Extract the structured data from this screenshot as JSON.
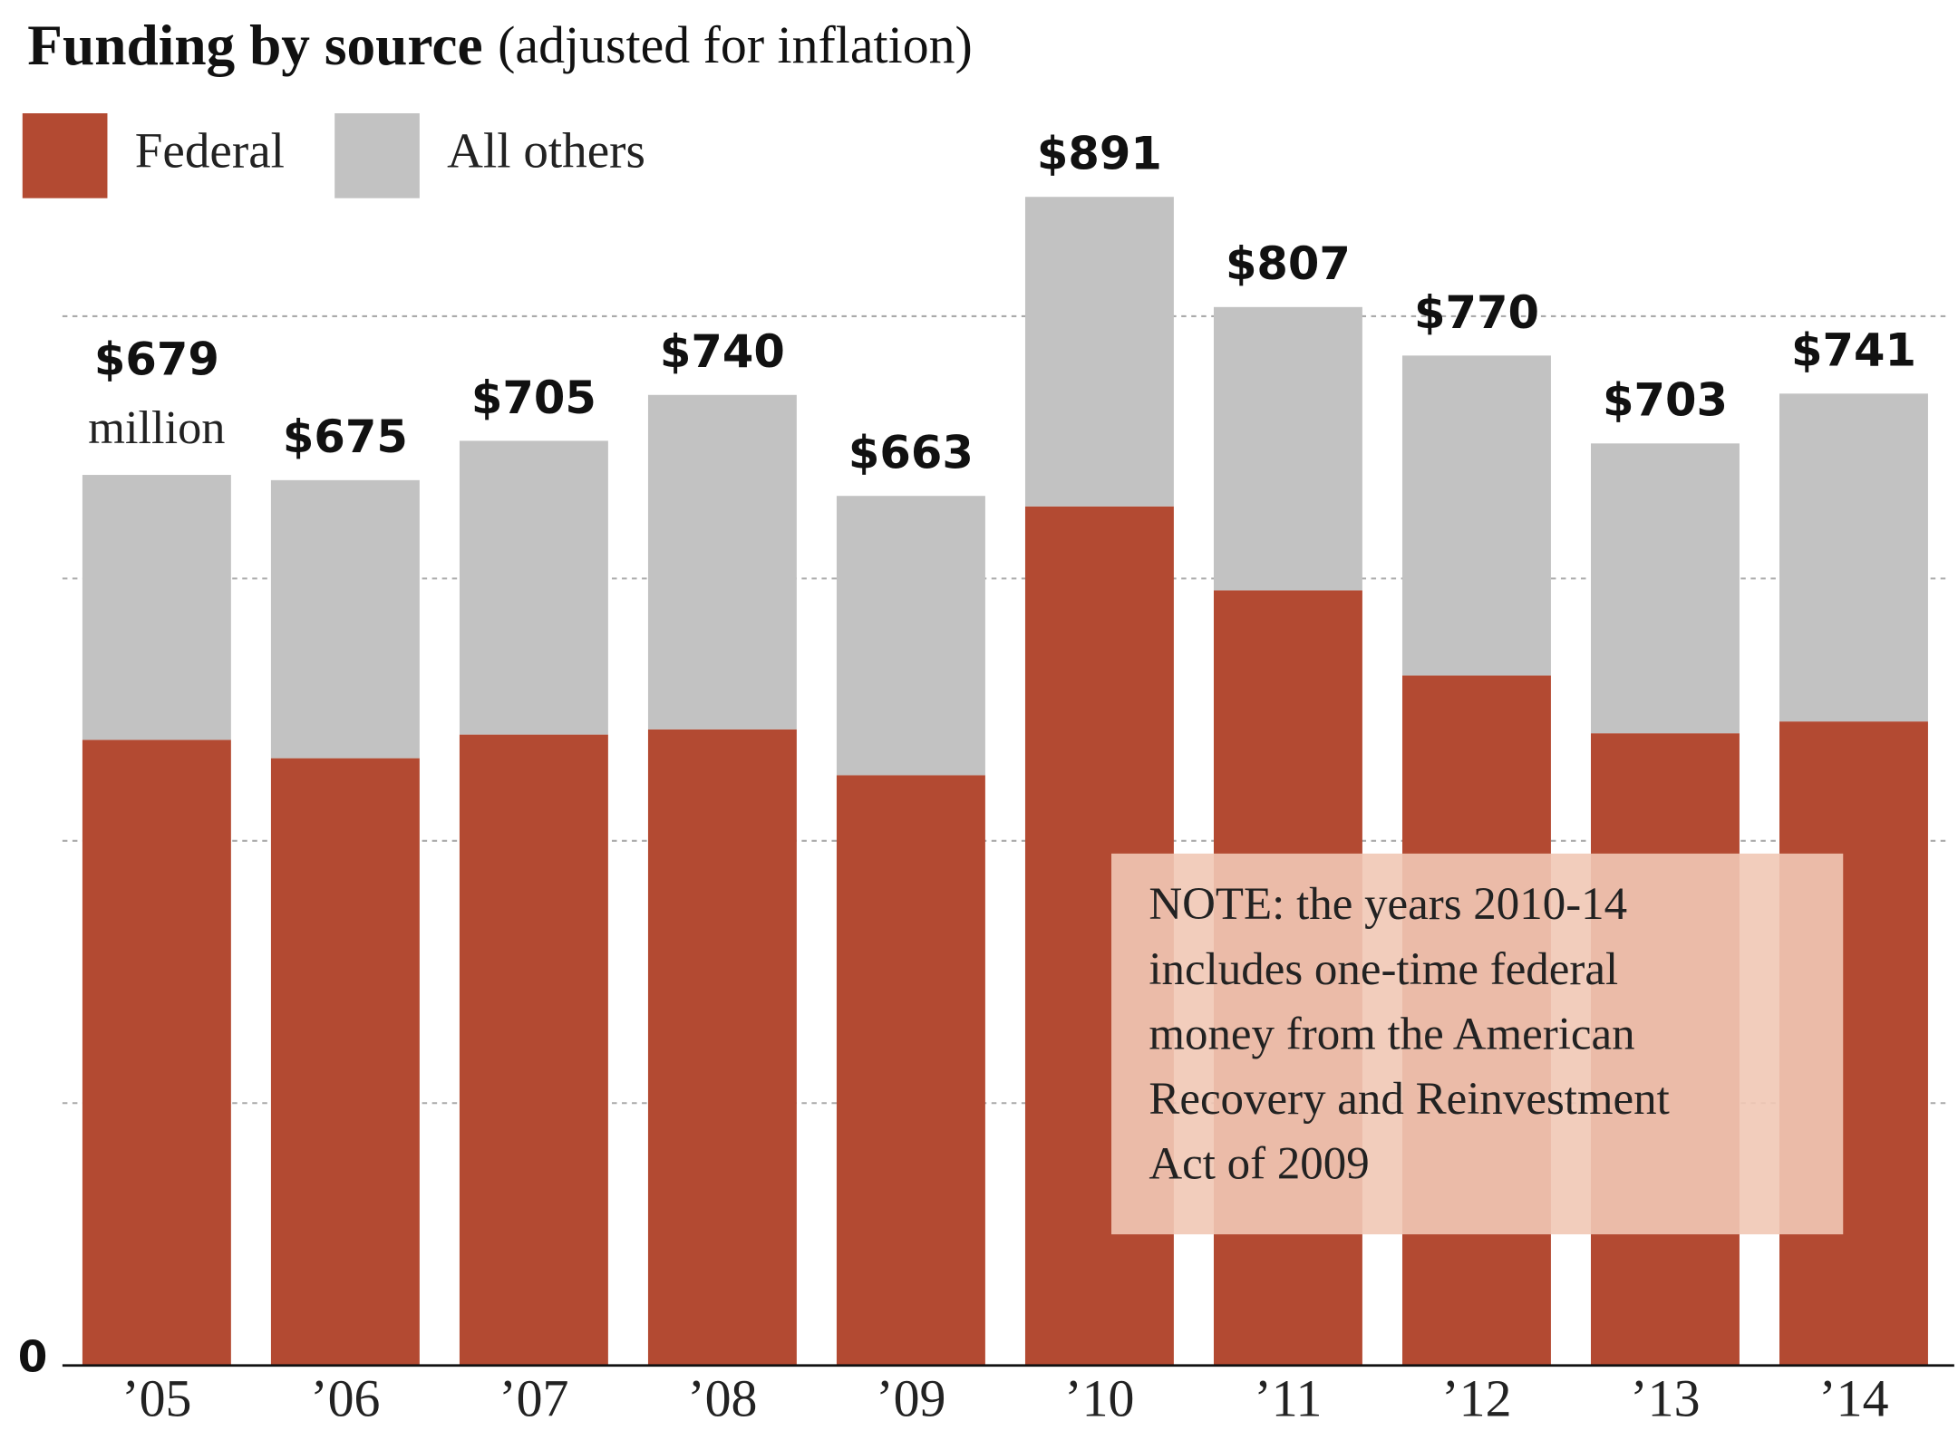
{
  "chart_data": {
    "type": "stacked-bar",
    "title": "Funding by source",
    "subtitle": "(adjusted for inflation)",
    "categories": [
      "’05",
      "’06",
      "’07",
      "’08",
      "’09",
      "’10",
      "’11",
      "’12",
      "’13",
      "’14"
    ],
    "series": [
      {
        "name": "Federal",
        "color": "#b34a32",
        "values": [
          477,
          463,
          481,
          485,
          450,
          655,
          591,
          526,
          482,
          491
        ]
      },
      {
        "name": "All others",
        "color": "#c2c2c2",
        "values": [
          202,
          212,
          224,
          255,
          213,
          236,
          216,
          244,
          221,
          250
        ]
      }
    ],
    "totals": [
      679,
      675,
      705,
      740,
      663,
      891,
      807,
      770,
      703,
      741
    ],
    "total_labels": [
      "$679",
      "$675",
      "$705",
      "$740",
      "$663",
      "$891",
      "$807",
      "$770",
      "$703",
      "$741"
    ],
    "unit_label": "million",
    "ylim": [
      0,
      900
    ],
    "yticks": [
      0
    ],
    "gridlines": [
      200,
      400,
      600,
      800
    ],
    "note_lines": [
      "NOTE: the years 2010-14",
      "includes one-time federal",
      "money from the American",
      "Recovery and Reinvestment",
      "Act of 2009"
    ]
  }
}
